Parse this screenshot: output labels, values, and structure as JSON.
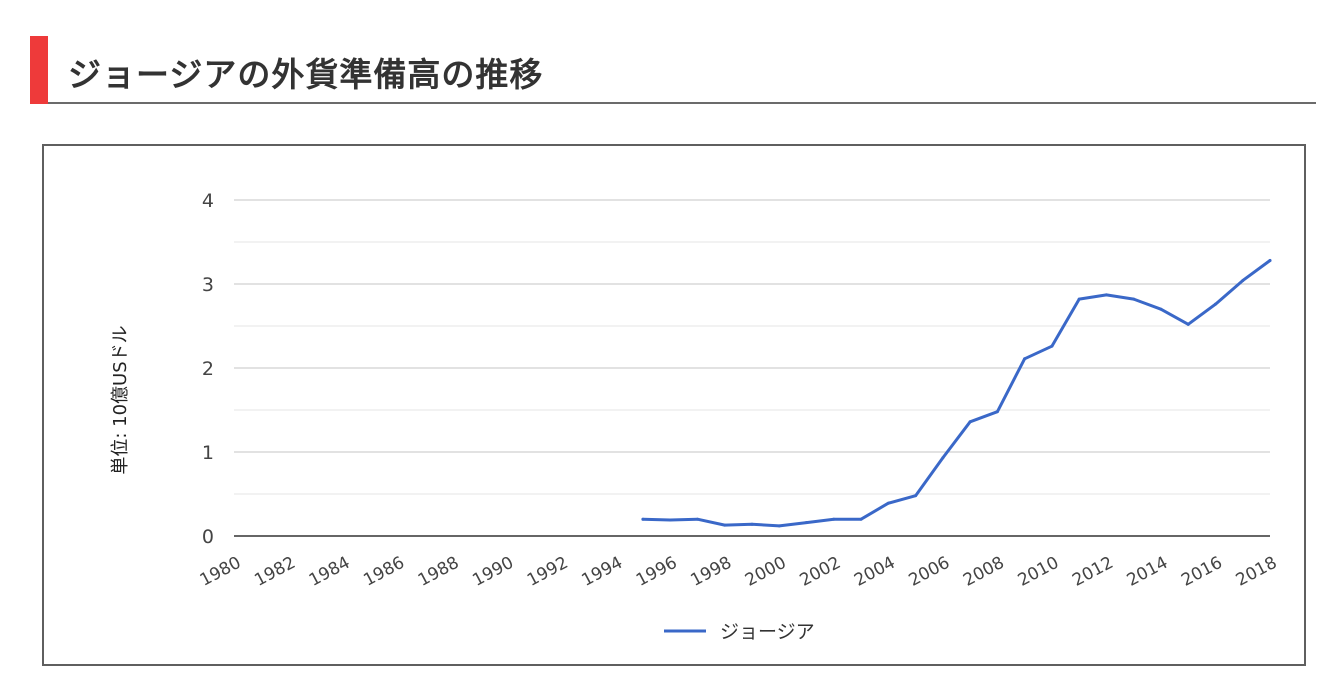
{
  "page": {
    "title": "ジョージアの外貨準備高の推移"
  },
  "colors": {
    "accent": "#ee3a3a",
    "series": "#3a68c8",
    "grid": "#cfcfcf",
    "axis": "#333333"
  },
  "chart_data": {
    "type": "line",
    "title": "",
    "xlabel": "",
    "ylabel": "単位: 10億USドル",
    "xlim": [
      1980,
      2018
    ],
    "ylim": [
      0,
      4
    ],
    "y_ticks": [
      "0",
      "1",
      "2",
      "3",
      "4"
    ],
    "x_ticks": [
      "1980",
      "1982",
      "1984",
      "1986",
      "1988",
      "1990",
      "1992",
      "1994",
      "1996",
      "1998",
      "2000",
      "2002",
      "2004",
      "2006",
      "2008",
      "2010",
      "2012",
      "2014",
      "2016",
      "2018"
    ],
    "grid": true,
    "legend_position": "bottom",
    "series": [
      {
        "name": "ジョージア",
        "x": [
          1995,
          1996,
          1997,
          1998,
          1999,
          2000,
          2001,
          2002,
          2003,
          2004,
          2005,
          2006,
          2007,
          2008,
          2009,
          2010,
          2011,
          2012,
          2013,
          2014,
          2015,
          2016,
          2017,
          2018
        ],
        "y": [
          0.2,
          0.19,
          0.2,
          0.13,
          0.14,
          0.12,
          0.16,
          0.2,
          0.2,
          0.39,
          0.48,
          0.93,
          1.36,
          1.48,
          2.11,
          2.26,
          2.82,
          2.87,
          2.82,
          2.7,
          2.52,
          2.76,
          3.04,
          3.28
        ]
      }
    ]
  }
}
